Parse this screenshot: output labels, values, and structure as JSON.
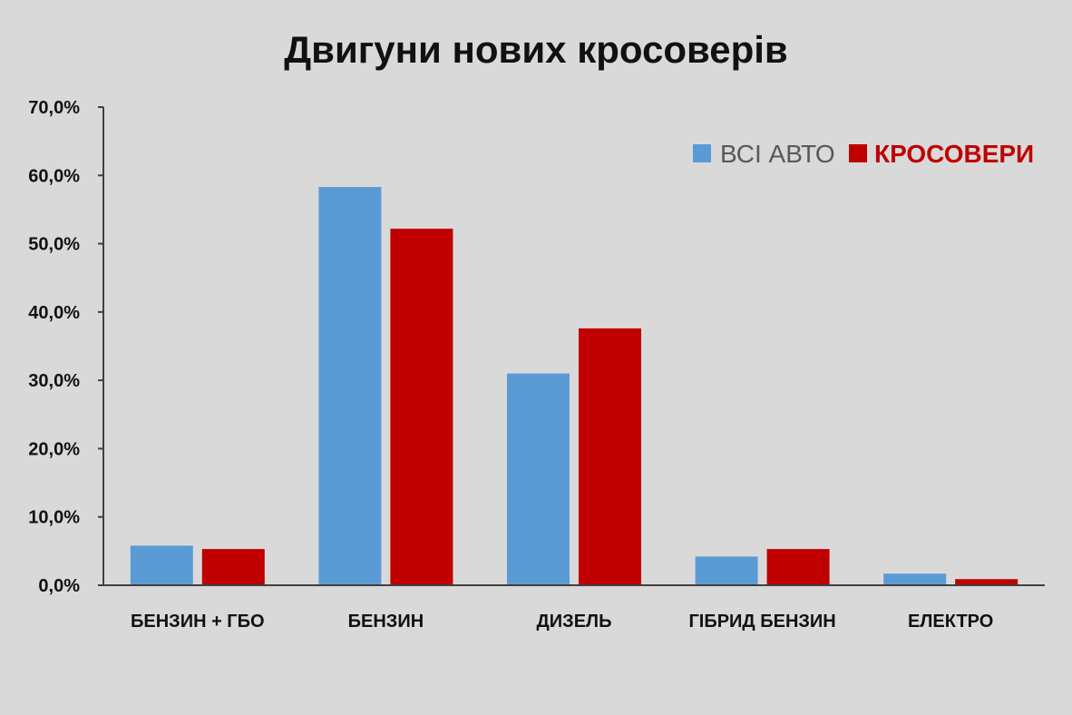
{
  "chart_data": {
    "type": "bar",
    "title": "Двигуни нових кросоверів",
    "xlabel": "",
    "ylabel": "",
    "categories": [
      "БЕНЗИН  + ГБО",
      "БЕНЗИН",
      "ДИЗЕЛЬ",
      "ГІБРИД  БЕНЗИН",
      "ЕЛЕКТРО"
    ],
    "series": [
      {
        "name": "ВСІ АВТО",
        "color": "#5b9bd5",
        "values": [
          5.8,
          58.3,
          31.0,
          4.2,
          1.7
        ]
      },
      {
        "name": "КРОСОВЕРИ",
        "color": "#c00000",
        "values": [
          5.3,
          52.2,
          37.6,
          5.3,
          0.9
        ]
      }
    ],
    "ylim": [
      0,
      70
    ],
    "yticks": [
      0,
      10,
      20,
      30,
      40,
      50,
      60,
      70
    ],
    "ytick_labels": [
      "0,0%",
      "10,0%",
      "20,0%",
      "30,0%",
      "40,0%",
      "50,0%",
      "60,0%",
      "70,0%"
    ],
    "grid": false,
    "legend_position": "top-right",
    "legend_text_colors": [
      "#595959",
      "#c00000"
    ],
    "background": "#d9d9d9",
    "axis_color": "#404040"
  }
}
